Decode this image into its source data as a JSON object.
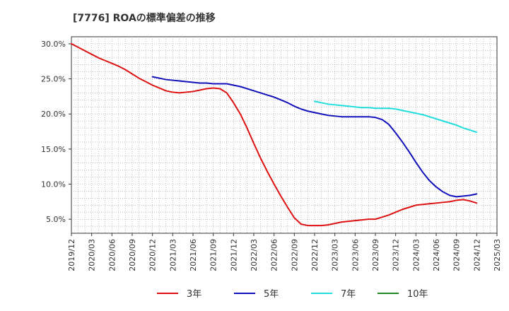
{
  "chart_data": {
    "type": "line",
    "title": "[7776]  ROAの標準偏差の推移",
    "xlabel": "",
    "ylabel": "",
    "x_ticks": [
      "2019/12",
      "2020/03",
      "2020/06",
      "2020/09",
      "2020/12",
      "2021/03",
      "2021/06",
      "2021/09",
      "2021/12",
      "2022/03",
      "2022/06",
      "2022/09",
      "2022/12",
      "2023/03",
      "2023/06",
      "2023/09",
      "2023/12",
      "2024/03",
      "2024/06",
      "2024/09",
      "2024/12",
      "2025/03"
    ],
    "y_ticks": [
      "5.0%",
      "10.0%",
      "15.0%",
      "20.0%",
      "25.0%",
      "30.0%"
    ],
    "y_tick_values": [
      5,
      10,
      15,
      20,
      25,
      30
    ],
    "ylim": [
      3.0,
      31.0
    ],
    "grid": true,
    "legend_position": "bottom",
    "series": [
      {
        "name": "3年",
        "color": "#dd1111",
        "x": [
          "2019/12",
          "2020/01",
          "2020/02",
          "2020/03",
          "2020/04",
          "2020/05",
          "2020/06",
          "2020/07",
          "2020/08",
          "2020/09",
          "2020/10",
          "2020/11",
          "2020/12",
          "2021/01",
          "2021/02",
          "2021/03",
          "2021/04",
          "2021/05",
          "2021/06",
          "2021/07",
          "2021/08",
          "2021/09",
          "2021/10",
          "2021/11",
          "2021/12",
          "2022/01",
          "2022/02",
          "2022/03",
          "2022/04",
          "2022/05",
          "2022/06",
          "2022/07",
          "2022/08",
          "2022/09",
          "2022/10",
          "2022/11",
          "2022/12",
          "2023/01",
          "2023/02",
          "2023/03",
          "2023/04",
          "2023/05",
          "2023/06",
          "2023/07",
          "2023/08",
          "2023/09",
          "2023/10",
          "2023/11",
          "2023/12",
          "2024/01",
          "2024/02",
          "2024/03",
          "2024/04",
          "2024/05",
          "2024/06",
          "2024/07",
          "2024/08",
          "2024/09",
          "2024/10",
          "2024/11",
          "2024/12"
        ],
        "values": [
          30.0,
          29.5,
          29.0,
          28.5,
          28.0,
          27.6,
          27.2,
          26.8,
          26.3,
          25.7,
          25.1,
          24.6,
          24.1,
          23.7,
          23.3,
          23.1,
          23.0,
          23.1,
          23.2,
          23.4,
          23.6,
          23.7,
          23.6,
          23.0,
          21.6,
          20.0,
          18.0,
          15.8,
          13.7,
          11.8,
          10.0,
          8.3,
          6.7,
          5.2,
          4.3,
          4.1,
          4.1,
          4.1,
          4.2,
          4.4,
          4.6,
          4.7,
          4.8,
          4.9,
          5.0,
          5.0,
          5.3,
          5.6,
          6.0,
          6.4,
          6.7,
          7.0,
          7.1,
          7.2,
          7.3,
          7.4,
          7.5,
          7.7,
          7.8,
          7.6,
          7.3
        ]
      },
      {
        "name": "5年",
        "color": "#1111bb",
        "x": [
          "2020/12",
          "2021/01",
          "2021/02",
          "2021/03",
          "2021/04",
          "2021/05",
          "2021/06",
          "2021/07",
          "2021/08",
          "2021/09",
          "2021/10",
          "2021/11",
          "2021/12",
          "2022/01",
          "2022/02",
          "2022/03",
          "2022/04",
          "2022/05",
          "2022/06",
          "2022/07",
          "2022/08",
          "2022/09",
          "2022/10",
          "2022/11",
          "2022/12",
          "2023/01",
          "2023/02",
          "2023/03",
          "2023/04",
          "2023/05",
          "2023/06",
          "2023/07",
          "2023/08",
          "2023/09",
          "2023/10",
          "2023/11",
          "2023/12",
          "2024/01",
          "2024/02",
          "2024/03",
          "2024/04",
          "2024/05",
          "2024/06",
          "2024/07",
          "2024/08",
          "2024/09",
          "2024/10",
          "2024/11",
          "2024/12"
        ],
        "values": [
          25.3,
          25.1,
          24.9,
          24.8,
          24.7,
          24.6,
          24.5,
          24.4,
          24.4,
          24.3,
          24.3,
          24.3,
          24.1,
          23.9,
          23.6,
          23.3,
          23.0,
          22.7,
          22.4,
          22.0,
          21.6,
          21.1,
          20.7,
          20.4,
          20.2,
          20.0,
          19.8,
          19.7,
          19.6,
          19.6,
          19.6,
          19.6,
          19.6,
          19.5,
          19.2,
          18.5,
          17.3,
          16.0,
          14.6,
          13.1,
          11.7,
          10.5,
          9.6,
          8.9,
          8.4,
          8.2,
          8.3,
          8.4,
          8.6
        ]
      },
      {
        "name": "7年",
        "color": "#22dddd",
        "x": [
          "2022/12",
          "2023/01",
          "2023/02",
          "2023/03",
          "2023/04",
          "2023/05",
          "2023/06",
          "2023/07",
          "2023/08",
          "2023/09",
          "2023/10",
          "2023/11",
          "2023/12",
          "2024/01",
          "2024/02",
          "2024/03",
          "2024/04",
          "2024/05",
          "2024/06",
          "2024/07",
          "2024/08",
          "2024/09",
          "2024/10",
          "2024/11",
          "2024/12"
        ],
        "values": [
          21.8,
          21.6,
          21.4,
          21.3,
          21.2,
          21.1,
          21.0,
          20.9,
          20.9,
          20.8,
          20.8,
          20.8,
          20.7,
          20.5,
          20.3,
          20.1,
          19.9,
          19.6,
          19.3,
          19.0,
          18.7,
          18.4,
          18.0,
          17.7,
          17.4
        ]
      },
      {
        "name": "10年",
        "color": "#228822",
        "x": [],
        "values": []
      }
    ]
  }
}
